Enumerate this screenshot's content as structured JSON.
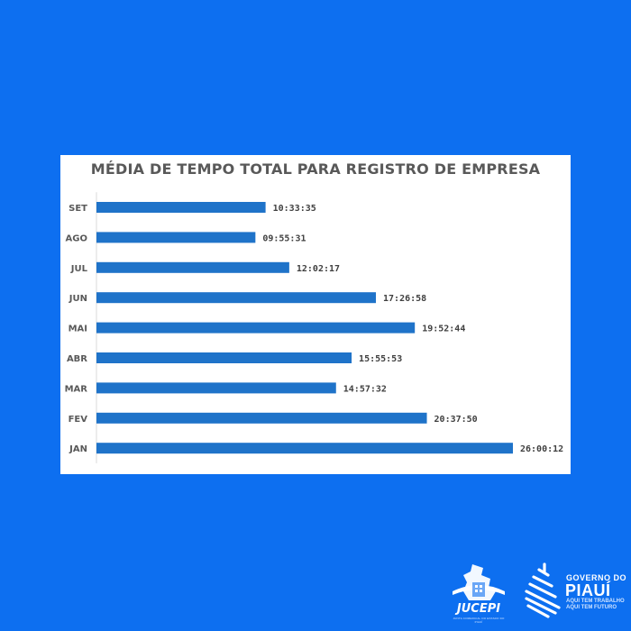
{
  "chart_data": {
    "type": "bar",
    "orientation": "horizontal",
    "title": "MÉDIA DE TEMPO TOTAL PARA REGISTRO DE EMPRESA",
    "categories": [
      "SET",
      "AGO",
      "JUL",
      "JUN",
      "MAI",
      "ABR",
      "MAR",
      "FEV",
      "JAN"
    ],
    "values": [
      10.5597,
      9.9253,
      12.0381,
      17.4494,
      19.8789,
      15.9314,
      14.9589,
      20.6306,
      26.0033
    ],
    "value_labels": [
      "10:33:35",
      "09:55:31",
      "12:02:17",
      "17:26:58",
      "19:52:44",
      "15:55:53",
      "14:57:32",
      "20:37:50",
      "26:00:12"
    ],
    "value_unit": "hours",
    "xlim": [
      0,
      26.0033
    ],
    "grid": false,
    "bar_color": "#1f73c9"
  },
  "logos": {
    "jucepi": {
      "name": "JUCEPI",
      "subtitle": "JUNTA COMERCIAL DO ESTADO DO PIAUÍ"
    },
    "governo": {
      "line1": "GOVERNO DO",
      "line2": "PIAUÍ",
      "line3": "AQUI TEM TRABALHO",
      "line4": "AQUI TEM FUTURO"
    }
  },
  "colors": {
    "background": "#0d6ff0",
    "card": "#ffffff"
  }
}
